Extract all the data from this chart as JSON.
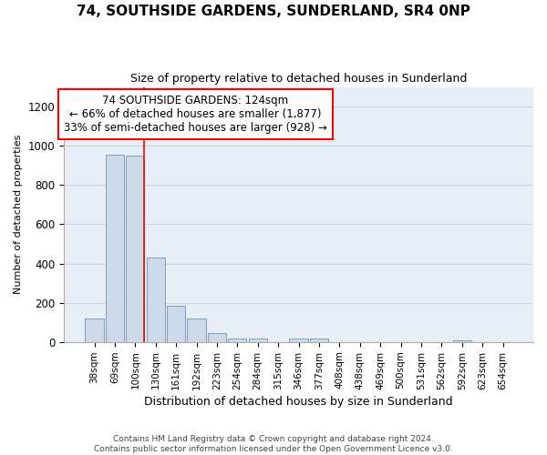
{
  "title": "74, SOUTHSIDE GARDENS, SUNDERLAND, SR4 0NP",
  "subtitle": "Size of property relative to detached houses in Sunderland",
  "xlabel": "Distribution of detached houses by size in Sunderland",
  "ylabel": "Number of detached properties",
  "footer_line1": "Contains HM Land Registry data © Crown copyright and database right 2024.",
  "footer_line2": "Contains public sector information licensed under the Open Government Licence v3.0.",
  "bar_labels": [
    "38sqm",
    "69sqm",
    "100sqm",
    "130sqm",
    "161sqm",
    "192sqm",
    "223sqm",
    "254sqm",
    "284sqm",
    "315sqm",
    "346sqm",
    "377sqm",
    "408sqm",
    "438sqm",
    "469sqm",
    "500sqm",
    "531sqm",
    "562sqm",
    "592sqm",
    "623sqm",
    "654sqm"
  ],
  "bar_values": [
    120,
    955,
    950,
    430,
    185,
    120,
    45,
    18,
    18,
    0,
    15,
    15,
    0,
    0,
    0,
    0,
    0,
    0,
    8,
    0,
    0
  ],
  "bar_color": "#ccd9e8",
  "bar_edge_color": "#7aa0bf",
  "ylim": [
    0,
    1300
  ],
  "yticks": [
    0,
    200,
    400,
    600,
    800,
    1000,
    1200
  ],
  "red_line_bar_index": 2,
  "annotation_line1": "74 SOUTHSIDE GARDENS: 124sqm",
  "annotation_line2": "← 66% of detached houses are smaller (1,877)",
  "annotation_line3": "33% of semi-detached houses are larger (928) →",
  "annotation_box_color": "white",
  "annotation_border_color": "red",
  "grid_color": "#c8d4e0",
  "bg_color": "#e8eef5",
  "title_fontsize": 11,
  "subtitle_fontsize": 9,
  "ylabel_fontsize": 8,
  "xlabel_fontsize": 9
}
